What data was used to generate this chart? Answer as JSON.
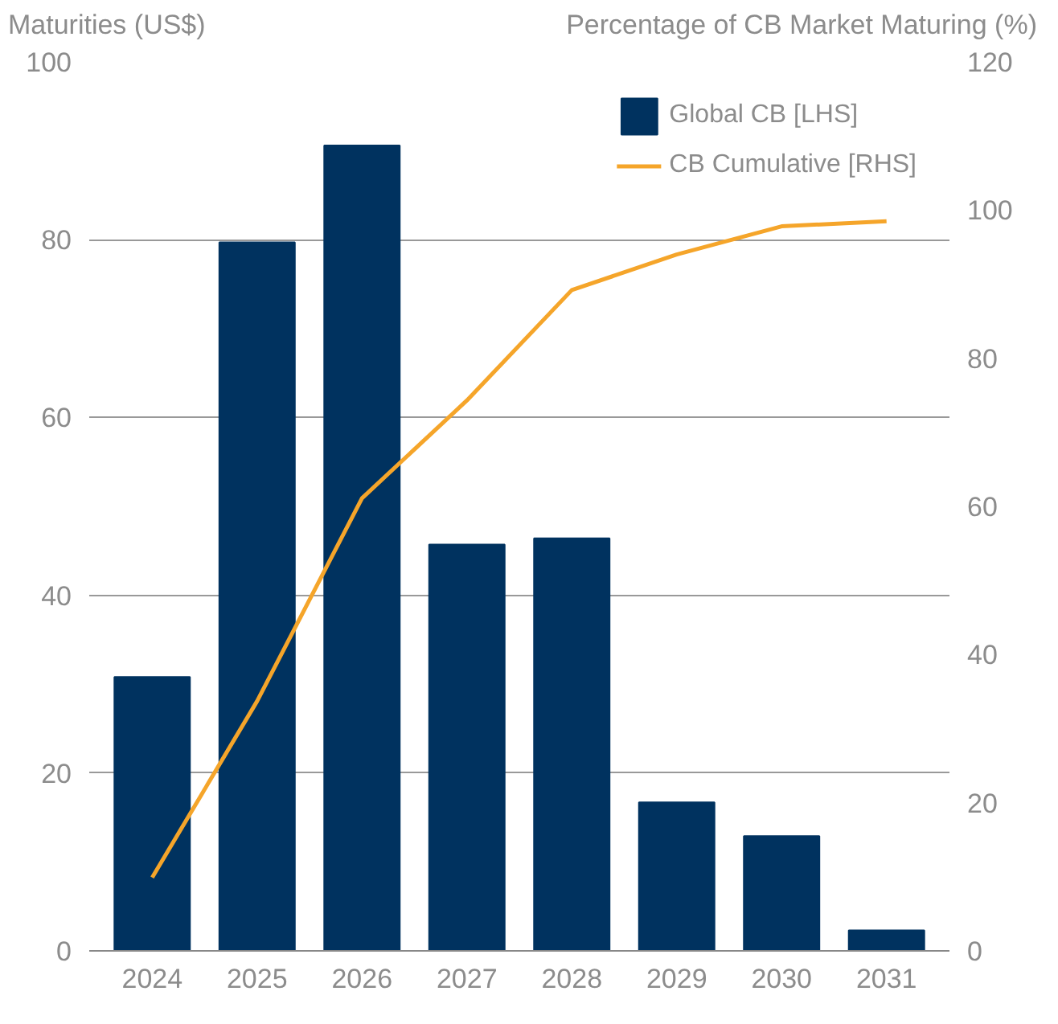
{
  "chart_data": {
    "type": "bar",
    "ylabel": "Maturities (US$)",
    "y2label": "Percentage of CB Market Maturing (%)",
    "categories": [
      "2024",
      "2025",
      "2026",
      "2027",
      "2028",
      "2029",
      "2030",
      "2031"
    ],
    "series": [
      {
        "name": "Global CB [LHS]",
        "color": "#00325f",
        "values": [
          30.8,
          79.7,
          90.6,
          45.7,
          46.4,
          16.7,
          12.9,
          2.3
        ]
      },
      {
        "name": "CB Cumulative [RHS]",
        "type": "line",
        "axis": "y2",
        "color": "#f5a52a",
        "values": [
          9.9,
          33.7,
          61.1,
          74.3,
          89.2,
          94.0,
          97.8,
          98.5
        ]
      }
    ],
    "ylim": [
      0,
      100
    ],
    "yticks": [
      0,
      20,
      40,
      60,
      80,
      100
    ],
    "y2lim": [
      0,
      120
    ],
    "y2ticks": [
      0,
      20,
      40,
      60,
      80,
      100,
      120
    ],
    "grid": "y",
    "legend": "top right"
  }
}
